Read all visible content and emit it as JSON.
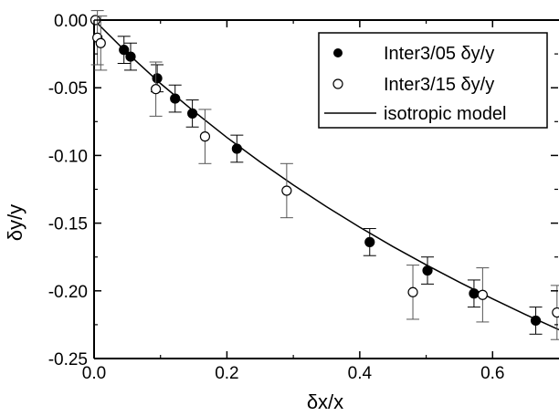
{
  "chart_data": {
    "type": "scatter",
    "xlabel": "δx/x",
    "ylabel": "δy/y",
    "xlim": [
      0.0,
      0.7
    ],
    "ylim": [
      -0.25,
      0.0
    ],
    "x_ticks": [
      "0.0",
      "0.2",
      "0.4",
      "0.6"
    ],
    "y_ticks": [
      "0.00",
      "-0.05",
      "-0.10",
      "-0.15",
      "-0.20",
      "-0.25"
    ],
    "legend_position": "top-right",
    "series": [
      {
        "name": "Inter3/05 δy/y",
        "marker": "filled-circle",
        "x": [
          0.045,
          0.055,
          0.095,
          0.122,
          0.148,
          0.215,
          0.415,
          0.502,
          0.572,
          0.665
        ],
        "y": [
          -0.022,
          -0.027,
          -0.043,
          -0.058,
          -0.069,
          -0.095,
          -0.164,
          -0.185,
          -0.202,
          -0.222
        ],
        "err": [
          0.01,
          0.01,
          0.01,
          0.01,
          0.01,
          0.01,
          0.01,
          0.01,
          0.01,
          0.01
        ]
      },
      {
        "name": "Inter3/15 δy/y",
        "marker": "open-circle",
        "x": [
          0.002,
          0.005,
          0.01,
          0.093,
          0.167,
          0.29,
          0.48,
          0.585,
          0.697
        ],
        "y": [
          0.0,
          -0.013,
          -0.017,
          -0.051,
          -0.086,
          -0.126,
          -0.201,
          -0.203,
          -0.216
        ],
        "err": [
          0.0,
          0.02,
          0.02,
          0.02,
          0.02,
          0.02,
          0.02,
          0.02,
          0.02
        ]
      },
      {
        "name": "isotropic model",
        "marker": "line",
        "x": [
          0.0,
          0.05,
          0.1,
          0.15,
          0.2,
          0.25,
          0.3,
          0.35,
          0.4,
          0.45,
          0.5,
          0.55,
          0.6,
          0.65,
          0.7
        ],
        "y": [
          0.0,
          -0.0244,
          -0.0468,
          -0.0673,
          -0.0867,
          -0.1048,
          -0.1218,
          -0.1379,
          -0.153,
          -0.1673,
          -0.1808,
          -0.1936,
          -0.2059,
          -0.2176,
          -0.2287
        ]
      }
    ]
  }
}
